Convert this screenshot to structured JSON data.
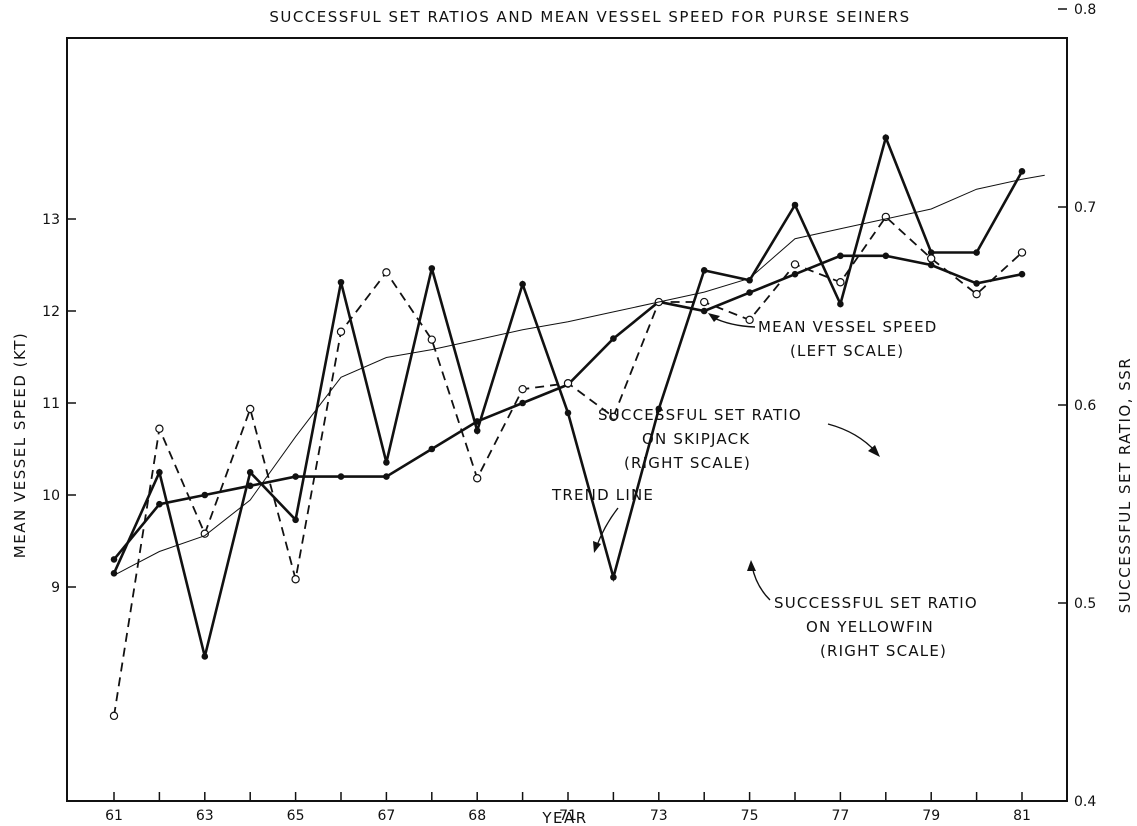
{
  "chart_data": {
    "type": "line",
    "title": "SUCCESSFUL SET RATIOS AND MEAN VESSEL SPEED FOR PURSE SEINERS",
    "xlabel": "YEAR",
    "ylabel_left": "MEAN VESSEL SPEED (KT)",
    "ylabel_right": "SUCCESSFUL SET RATIO, SSR",
    "x_ticks": [
      "61",
      "63",
      "65",
      "67",
      "68",
      "71",
      "73",
      "75",
      "77",
      "79",
      "81"
    ],
    "left_ticks": [
      "9",
      "10",
      "11",
      "12",
      "13"
    ],
    "right_ticks": [
      "0.4",
      "0.5",
      "0.6",
      "0.7",
      "0.8"
    ],
    "left_ylim": [
      7.0,
      14.0
    ],
    "right_ylim": [
      0.4,
      0.8
    ],
    "grid": false,
    "x": [
      61,
      62,
      63,
      64,
      65,
      66,
      67,
      68,
      69,
      70,
      71,
      72,
      73,
      74,
      75,
      76,
      77,
      78,
      79,
      80,
      81
    ],
    "series": [
      {
        "key": "speed",
        "axis": "left",
        "style": "solid-filled",
        "x": [
          61,
          62,
          63,
          64,
          65,
          66,
          67,
          68,
          69,
          70,
          71,
          72,
          73,
          74,
          75,
          76,
          77,
          78,
          79,
          80,
          81
        ],
        "values": [
          9.3,
          9.9,
          10.0,
          10.1,
          10.2,
          10.2,
          10.2,
          10.5,
          10.8,
          11.0,
          11.2,
          11.7,
          12.1,
          12.0,
          12.2,
          12.4,
          12.6,
          12.6,
          12.5,
          12.3,
          12.4
        ]
      },
      {
        "key": "skipjack",
        "axis": "right",
        "style": "solid-filled",
        "x": [
          61,
          62,
          63,
          64,
          65,
          66,
          67,
          68,
          69,
          70,
          71,
          72,
          73,
          74,
          75,
          76,
          77,
          78,
          79,
          80,
          81
        ],
        "values": [
          0.515,
          0.566,
          0.473,
          0.566,
          0.542,
          0.662,
          0.571,
          0.669,
          0.587,
          0.661,
          0.596,
          0.513,
          0.598,
          0.668,
          0.663,
          0.701,
          0.651,
          0.735,
          0.677,
          0.677,
          0.718
        ]
      },
      {
        "key": "yellowfin",
        "axis": "right",
        "style": "dashed-open",
        "x": [
          61,
          62,
          63,
          64,
          65,
          66,
          67,
          68,
          69,
          70,
          71,
          72,
          73,
          74,
          75,
          76,
          77,
          78,
          79,
          80,
          81
        ],
        "values": [
          0.443,
          0.588,
          0.535,
          0.598,
          0.512,
          0.637,
          0.667,
          0.633,
          0.563,
          0.608,
          0.611,
          0.594,
          0.652,
          0.652,
          0.643,
          0.671,
          0.662,
          0.695,
          0.674,
          0.656,
          0.677
        ]
      },
      {
        "key": "trend",
        "axis": "right",
        "style": "thin",
        "x": [
          61,
          62,
          63,
          64,
          65,
          66,
          67,
          68,
          69,
          70,
          71,
          72,
          73,
          74,
          75,
          76,
          77,
          78,
          79,
          80,
          81,
          81.5
        ],
        "values": [
          0.514,
          0.526,
          0.534,
          0.552,
          0.584,
          0.614,
          0.624,
          0.628,
          0.633,
          0.638,
          0.642,
          0.647,
          0.652,
          0.657,
          0.664,
          0.684,
          0.689,
          0.694,
          0.699,
          0.709,
          0.714,
          0.716
        ]
      }
    ],
    "annotations": {
      "speed": [
        "MEAN VESSEL SPEED",
        "(LEFT SCALE)"
      ],
      "skipjack": [
        "SUCCESSFUL SET RATIO",
        "ON SKIPJACK",
        "(RIGHT SCALE)"
      ],
      "trend": [
        "TREND LINE"
      ],
      "yellowfin": [
        "SUCCESSFUL SET RATIO",
        "ON YELLOWFIN",
        "(RIGHT SCALE)"
      ]
    }
  }
}
